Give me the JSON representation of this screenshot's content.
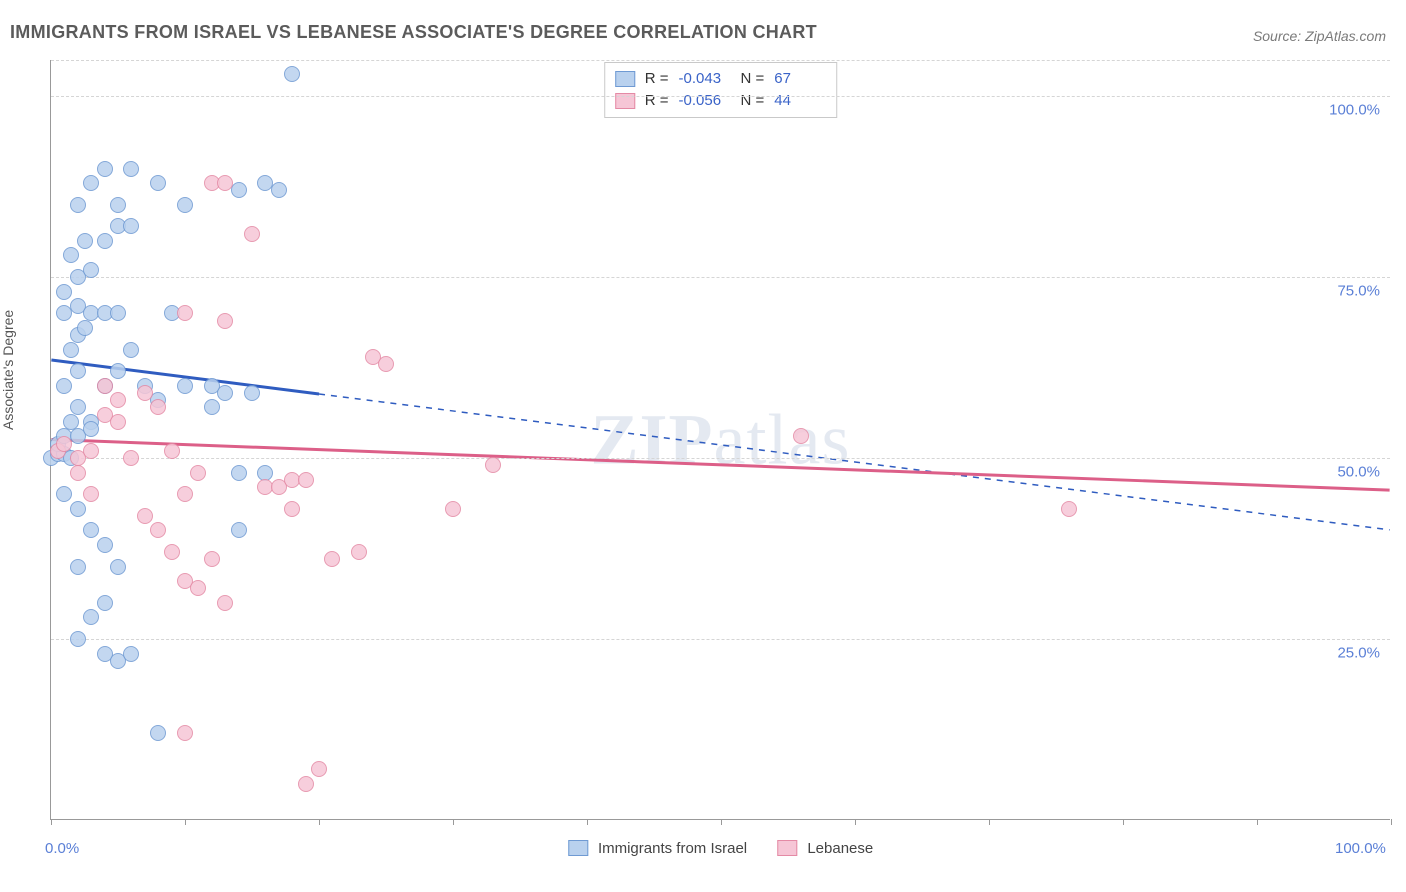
{
  "title": "IMMIGRANTS FROM ISRAEL VS LEBANESE ASSOCIATE'S DEGREE CORRELATION CHART",
  "source_label": "Source: ZipAtlas.com",
  "ylabel": "Associate's Degree",
  "watermark_bold": "ZIP",
  "watermark_rest": "atlas",
  "chart": {
    "type": "scatter",
    "background_color": "#ffffff",
    "grid_color": "#d5d5d5",
    "axis_color": "#999999",
    "label_color": "#5a7fd6",
    "text_color": "#5b5b5b",
    "marker_radius": 8,
    "marker_fill_opacity": 0.25,
    "xlim": [
      0,
      100
    ],
    "ylim": [
      0,
      105
    ],
    "x_ticks": [
      0,
      10,
      20,
      30,
      40,
      50,
      60,
      70,
      80,
      90,
      100
    ],
    "x_tick_labels": {
      "0": "0.0%",
      "100": "100.0%"
    },
    "y_gridlines": [
      25,
      50,
      75,
      100,
      105
    ],
    "y_tick_labels": {
      "25": "25.0%",
      "50": "50.0%",
      "75": "75.0%",
      "100": "100.0%"
    }
  },
  "series": [
    {
      "key": "israel",
      "legend_label": "Immigrants from Israel",
      "stroke": "#6f9ad3",
      "fill": "#b9d1ee",
      "trend_color": "#2f5cc0",
      "R_label": "R =",
      "R": "-0.043",
      "N_label": "N =",
      "N": "67",
      "trend": {
        "y_at_x0": 63.5,
        "y_at_x100": 40.0,
        "solid_until_x": 20
      },
      "points": [
        [
          0,
          50
        ],
        [
          0.5,
          50.5
        ],
        [
          1,
          50.5
        ],
        [
          1.5,
          50
        ],
        [
          0.5,
          52
        ],
        [
          1,
          53
        ],
        [
          1.5,
          55
        ],
        [
          2,
          57
        ],
        [
          1,
          60
        ],
        [
          2,
          62
        ],
        [
          1.5,
          65
        ],
        [
          2,
          67
        ],
        [
          2.5,
          68
        ],
        [
          1,
          70
        ],
        [
          2,
          71
        ],
        [
          3,
          70
        ],
        [
          4,
          70
        ],
        [
          5,
          70
        ],
        [
          1,
          73
        ],
        [
          2,
          75
        ],
        [
          3,
          76
        ],
        [
          1.5,
          78
        ],
        [
          2.5,
          80
        ],
        [
          4,
          80
        ],
        [
          5,
          82
        ],
        [
          6,
          82
        ],
        [
          2,
          85
        ],
        [
          3,
          88
        ],
        [
          4,
          90
        ],
        [
          6,
          90
        ],
        [
          8,
          88
        ],
        [
          5,
          85
        ],
        [
          3,
          55
        ],
        [
          4,
          60
        ],
        [
          5,
          62
        ],
        [
          6,
          65
        ],
        [
          7,
          60
        ],
        [
          8,
          58
        ],
        [
          9,
          70
        ],
        [
          10,
          60
        ],
        [
          10,
          85
        ],
        [
          12,
          57
        ],
        [
          12,
          60
        ],
        [
          14,
          48
        ],
        [
          14,
          87
        ],
        [
          16,
          48
        ],
        [
          16,
          88
        ],
        [
          17,
          87
        ],
        [
          18,
          103
        ],
        [
          1,
          45
        ],
        [
          2,
          43
        ],
        [
          3,
          40
        ],
        [
          4,
          38
        ],
        [
          2,
          35
        ],
        [
          5,
          35
        ],
        [
          4,
          30
        ],
        [
          3,
          28
        ],
        [
          2,
          25
        ],
        [
          4,
          23
        ],
        [
          5,
          22
        ],
        [
          6,
          23
        ],
        [
          2,
          53
        ],
        [
          3,
          54
        ],
        [
          8,
          12
        ],
        [
          14,
          40
        ],
        [
          13,
          59
        ],
        [
          15,
          59
        ]
      ]
    },
    {
      "key": "lebanese",
      "legend_label": "Lebanese",
      "stroke": "#e48aa5",
      "fill": "#f6c6d6",
      "trend_color": "#dc5f88",
      "R_label": "R =",
      "R": "-0.056",
      "N_label": "N =",
      "N": "44",
      "trend": {
        "y_at_x0": 52.5,
        "y_at_x100": 45.5,
        "solid_until_x": 100
      },
      "points": [
        [
          0.5,
          51
        ],
        [
          1,
          52
        ],
        [
          2,
          50
        ],
        [
          3,
          51
        ],
        [
          2,
          48
        ],
        [
          4,
          56
        ],
        [
          5,
          55
        ],
        [
          6,
          50
        ],
        [
          7,
          59
        ],
        [
          8,
          57
        ],
        [
          9,
          51
        ],
        [
          10,
          45
        ],
        [
          11,
          48
        ],
        [
          10,
          70
        ],
        [
          12,
          88
        ],
        [
          13,
          88
        ],
        [
          13,
          69
        ],
        [
          15,
          81
        ],
        [
          16,
          46
        ],
        [
          17,
          46
        ],
        [
          18,
          43
        ],
        [
          18,
          47
        ],
        [
          19,
          47
        ],
        [
          10,
          33
        ],
        [
          11,
          32
        ],
        [
          12,
          36
        ],
        [
          13,
          30
        ],
        [
          7,
          42
        ],
        [
          8,
          40
        ],
        [
          9,
          37
        ],
        [
          10,
          12
        ],
        [
          4,
          60
        ],
        [
          5,
          58
        ],
        [
          3,
          45
        ],
        [
          19,
          5
        ],
        [
          20,
          7
        ],
        [
          21,
          36
        ],
        [
          23,
          37
        ],
        [
          24,
          64
        ],
        [
          25,
          63
        ],
        [
          30,
          43
        ],
        [
          33,
          49
        ],
        [
          56,
          53
        ],
        [
          76,
          43
        ]
      ]
    }
  ],
  "legend_top": {
    "R_prefix": "R =",
    "N_prefix": "N ="
  }
}
